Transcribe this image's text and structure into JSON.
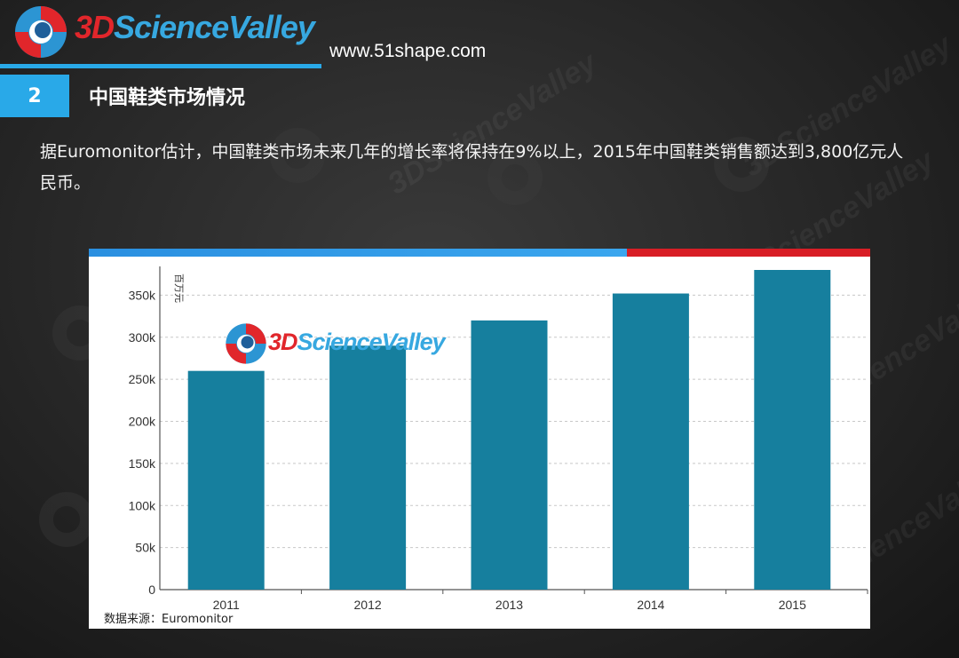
{
  "brand": {
    "logo_3d": "3D",
    "logo_rest": "ScienceValley",
    "url": "www.51shape.com"
  },
  "section": {
    "number": "2",
    "title": "中国鞋类市场情况"
  },
  "description": "据Euromonitor估计，中国鞋类市场未来几年的增长率将保持在9%以上，2015年中国鞋类销售额达到3,800亿元人民币。",
  "colors": {
    "accent_blue": "#29a9e8",
    "accent_red": "#d81e26",
    "bar_teal": "#167f9e"
  },
  "chart_data": {
    "type": "bar",
    "categories": [
      "2011",
      "2012",
      "2013",
      "2014",
      "2015"
    ],
    "values": [
      260000,
      290000,
      320000,
      352000,
      380000
    ],
    "ylabel": "百万元",
    "ylim": [
      0,
      380000
    ],
    "yticks": [
      0,
      50000,
      100000,
      150000,
      200000,
      250000,
      300000,
      350000
    ],
    "ytick_labels": [
      "0",
      "50k",
      "100k",
      "150k",
      "200k",
      "250k",
      "300k",
      "350k"
    ],
    "grid": true,
    "source": "数据来源：Euromonitor"
  }
}
